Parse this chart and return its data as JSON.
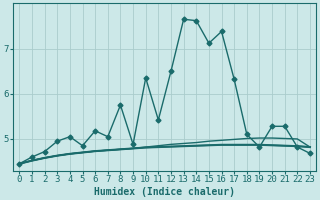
{
  "xlabel": "Humidex (Indice chaleur)",
  "background_color": "#cce8e8",
  "grid_color": "#aacccc",
  "line_color": "#1a6b6b",
  "xlim": [
    -0.5,
    23.5
  ],
  "ylim": [
    4.3,
    8.0
  ],
  "yticks": [
    5,
    6,
    7
  ],
  "xticks": [
    0,
    1,
    2,
    3,
    4,
    5,
    6,
    7,
    8,
    9,
    10,
    11,
    12,
    13,
    14,
    15,
    16,
    17,
    18,
    19,
    20,
    21,
    22,
    23
  ],
  "lines": [
    {
      "x": [
        0,
        1,
        2,
        3,
        4,
        5,
        6,
        7,
        8,
        9,
        10,
        11,
        12,
        13,
        14,
        15,
        16,
        17,
        18,
        19,
        20,
        21,
        22,
        23
      ],
      "y": [
        4.45,
        4.6,
        4.72,
        4.95,
        5.05,
        4.85,
        5.18,
        5.05,
        5.75,
        4.88,
        6.35,
        5.42,
        6.5,
        7.65,
        7.62,
        7.12,
        7.38,
        6.32,
        5.1,
        4.82,
        5.28,
        5.28,
        4.82,
        4.68
      ],
      "marker": "D",
      "markersize": 2.5,
      "linewidth": 1.0,
      "has_marker": true
    },
    {
      "x": [
        0,
        1,
        2,
        3,
        4,
        5,
        6,
        7,
        8,
        9,
        10,
        11,
        12,
        13,
        14,
        15,
        16,
        17,
        18,
        19,
        20,
        21,
        22,
        23
      ],
      "y": [
        4.45,
        4.52,
        4.58,
        4.63,
        4.67,
        4.7,
        4.73,
        4.75,
        4.77,
        4.79,
        4.81,
        4.82,
        4.83,
        4.84,
        4.85,
        4.86,
        4.87,
        4.87,
        4.87,
        4.87,
        4.86,
        4.85,
        4.84,
        4.82
      ],
      "marker": null,
      "markersize": 0,
      "linewidth": 1.5,
      "has_marker": false
    },
    {
      "x": [
        0,
        1,
        2,
        3,
        4,
        5,
        6,
        7,
        8,
        9,
        10,
        11,
        12,
        13,
        14,
        15,
        16,
        17,
        18,
        19,
        20,
        21,
        22,
        23
      ],
      "y": [
        4.45,
        4.52,
        4.58,
        4.63,
        4.67,
        4.7,
        4.73,
        4.75,
        4.77,
        4.79,
        4.81,
        4.82,
        4.83,
        4.84,
        4.85,
        4.86,
        4.87,
        4.87,
        4.87,
        4.87,
        4.86,
        4.85,
        4.84,
        4.82
      ],
      "marker": null,
      "markersize": 0,
      "linewidth": 1.0,
      "has_marker": false
    },
    {
      "x": [
        0,
        1,
        2,
        3,
        4,
        5,
        6,
        7,
        8,
        9,
        10,
        11,
        12,
        13,
        14,
        15,
        16,
        17,
        18,
        19,
        20,
        21,
        22,
        23
      ],
      "y": [
        4.45,
        4.52,
        4.58,
        4.63,
        4.67,
        4.7,
        4.73,
        4.75,
        4.77,
        4.79,
        4.82,
        4.85,
        4.88,
        4.9,
        4.92,
        4.95,
        4.97,
        4.99,
        5.01,
        5.02,
        5.02,
        5.01,
        5.0,
        4.82
      ],
      "marker": null,
      "markersize": 0,
      "linewidth": 1.0,
      "has_marker": false
    }
  ],
  "xlabel_fontsize": 7,
  "tick_fontsize": 6.5
}
